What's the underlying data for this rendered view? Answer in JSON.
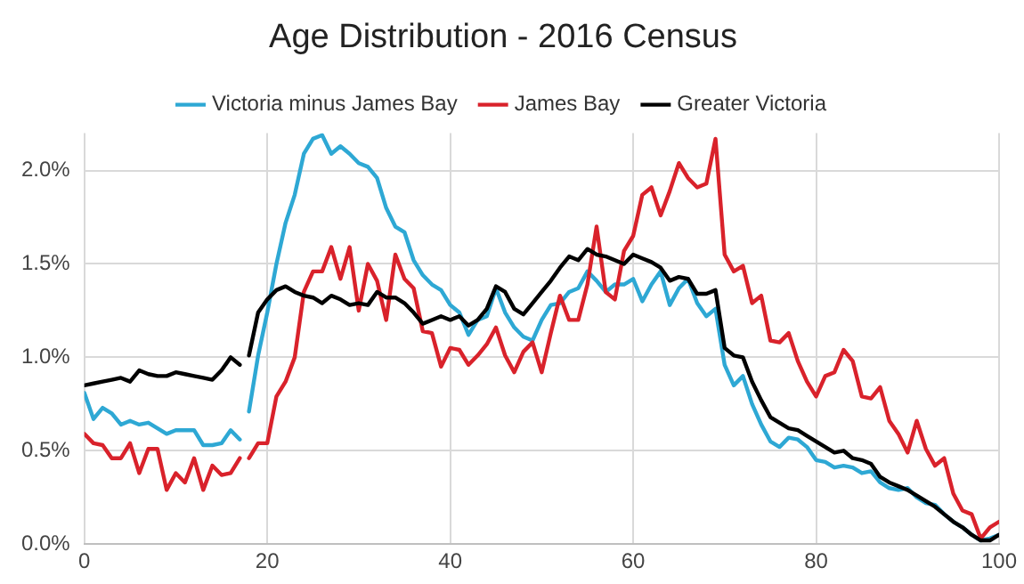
{
  "chart_data": {
    "type": "line",
    "title": "Age Distribution - 2016 Census",
    "x": [
      0,
      1,
      2,
      3,
      4,
      5,
      6,
      7,
      8,
      9,
      10,
      11,
      12,
      13,
      14,
      15,
      16,
      17,
      17.5,
      18,
      19,
      20,
      21,
      22,
      23,
      24,
      25,
      26,
      27,
      28,
      29,
      30,
      31,
      32,
      33,
      34,
      35,
      36,
      37,
      38,
      39,
      40,
      41,
      42,
      43,
      44,
      45,
      46,
      47,
      48,
      49,
      50,
      51,
      52,
      53,
      54,
      55,
      56,
      57,
      58,
      59,
      60,
      61,
      62,
      63,
      64,
      65,
      66,
      67,
      68,
      69,
      70,
      71,
      72,
      73,
      74,
      75,
      76,
      77,
      78,
      79,
      80,
      81,
      82,
      83,
      84,
      85,
      86,
      87,
      88,
      89,
      90,
      91,
      92,
      93,
      94,
      95,
      96,
      97,
      98,
      99,
      100
    ],
    "series": [
      {
        "name": "Victoria minus James Bay",
        "color": "#2ea8d4",
        "values": [
          0.81,
          0.67,
          0.73,
          0.7,
          0.64,
          0.66,
          0.64,
          0.65,
          0.62,
          0.59,
          0.61,
          0.61,
          0.61,
          0.53,
          0.53,
          0.54,
          0.61,
          0.56,
          null,
          0.71,
          1.01,
          1.24,
          1.5,
          1.72,
          1.87,
          2.09,
          2.17,
          2.19,
          2.09,
          2.13,
          2.09,
          2.04,
          2.02,
          1.96,
          1.8,
          1.7,
          1.67,
          1.52,
          1.44,
          1.39,
          1.36,
          1.28,
          1.24,
          1.12,
          1.2,
          1.22,
          1.37,
          1.24,
          1.16,
          1.11,
          1.09,
          1.2,
          1.28,
          1.29,
          1.35,
          1.37,
          1.46,
          1.41,
          1.35,
          1.39,
          1.39,
          1.42,
          1.3,
          1.39,
          1.46,
          1.28,
          1.37,
          1.42,
          1.29,
          1.22,
          1.26,
          0.96,
          0.85,
          0.9,
          0.75,
          0.64,
          0.55,
          0.52,
          0.57,
          0.56,
          0.52,
          0.45,
          0.44,
          0.41,
          0.42,
          0.41,
          0.38,
          0.39,
          0.33,
          0.3,
          0.29,
          0.3,
          0.25,
          0.22,
          0.21,
          0.16,
          0.12,
          0.09,
          0.05,
          0.02,
          0.03,
          0.05
        ]
      },
      {
        "name": "James Bay",
        "color": "#d9222b",
        "values": [
          0.59,
          0.54,
          0.53,
          0.46,
          0.46,
          0.54,
          0.38,
          0.51,
          0.51,
          0.29,
          0.38,
          0.33,
          0.46,
          0.29,
          0.42,
          0.37,
          0.38,
          0.46,
          null,
          0.46,
          0.54,
          0.54,
          0.79,
          0.87,
          1.0,
          1.35,
          1.46,
          1.46,
          1.59,
          1.42,
          1.59,
          1.25,
          1.5,
          1.41,
          1.2,
          1.55,
          1.42,
          1.37,
          1.14,
          1.13,
          0.95,
          1.05,
          1.04,
          0.96,
          1.01,
          1.07,
          1.16,
          1.01,
          0.92,
          1.03,
          1.08,
          0.92,
          1.13,
          1.33,
          1.2,
          1.2,
          1.39,
          1.7,
          1.35,
          1.31,
          1.57,
          1.65,
          1.87,
          1.91,
          1.76,
          1.89,
          2.04,
          1.96,
          1.91,
          1.93,
          2.17,
          1.55,
          1.46,
          1.49,
          1.29,
          1.33,
          1.09,
          1.08,
          1.13,
          0.98,
          0.87,
          0.79,
          0.9,
          0.92,
          1.04,
          0.98,
          0.79,
          0.78,
          0.84,
          0.66,
          0.59,
          0.49,
          0.66,
          0.51,
          0.42,
          0.46,
          0.27,
          0.18,
          0.16,
          0.03,
          0.09,
          0.12
        ]
      },
      {
        "name": "Greater Victoria",
        "color": "#000000",
        "values": [
          0.85,
          0.86,
          0.87,
          0.88,
          0.89,
          0.87,
          0.93,
          0.91,
          0.9,
          0.9,
          0.92,
          0.91,
          0.9,
          0.89,
          0.88,
          0.93,
          1.0,
          0.96,
          null,
          1.01,
          1.24,
          1.31,
          1.36,
          1.38,
          1.35,
          1.33,
          1.32,
          1.29,
          1.33,
          1.31,
          1.28,
          1.29,
          1.28,
          1.35,
          1.32,
          1.32,
          1.29,
          1.24,
          1.18,
          1.2,
          1.22,
          1.2,
          1.22,
          1.17,
          1.2,
          1.26,
          1.38,
          1.35,
          1.26,
          1.23,
          1.29,
          1.35,
          1.41,
          1.48,
          1.54,
          1.52,
          1.58,
          1.55,
          1.54,
          1.52,
          1.5,
          1.55,
          1.53,
          1.51,
          1.48,
          1.41,
          1.43,
          1.42,
          1.34,
          1.34,
          1.36,
          1.05,
          1.01,
          1.0,
          0.87,
          0.77,
          0.68,
          0.65,
          0.62,
          0.61,
          0.58,
          0.55,
          0.52,
          0.49,
          0.5,
          0.46,
          0.45,
          0.43,
          0.36,
          0.33,
          0.31,
          0.29,
          0.26,
          0.23,
          0.2,
          0.16,
          0.12,
          0.09,
          0.05,
          0.02,
          0.02,
          0.05
        ]
      }
    ],
    "xlim": [
      0,
      100
    ],
    "xticks": [
      0,
      20,
      40,
      60,
      80,
      100
    ],
    "ylim": [
      0,
      2.2
    ],
    "yticks": [
      {
        "value": 0,
        "label": "0.0%"
      },
      {
        "value": 0.5,
        "label": "0.5%"
      },
      {
        "value": 1,
        "label": "1.0%"
      },
      {
        "value": 1.5,
        "label": "1.5%"
      },
      {
        "value": 2,
        "label": "2.0%"
      }
    ],
    "grid": true,
    "legend": "top",
    "marker": "none",
    "line_style": "solid"
  }
}
